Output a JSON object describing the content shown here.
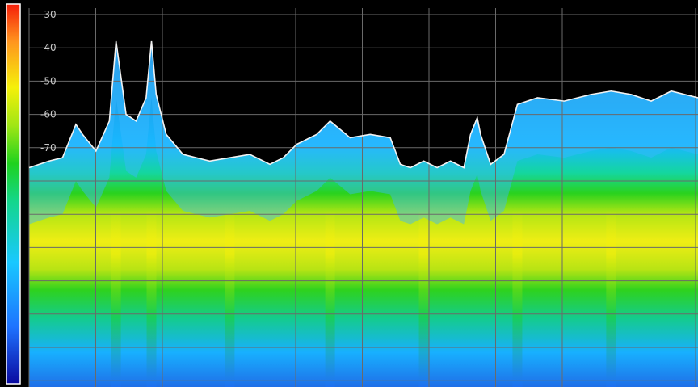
{
  "chart_data": {
    "type": "spectrum-density",
    "ylim": [
      -80,
      -30
    ],
    "y_ticks": [
      "-30",
      "-40",
      "-50",
      "-60",
      "-70"
    ],
    "grid": true,
    "color_scale": [
      "#0a0aa0",
      "#1e73ff",
      "#18c8ff",
      "#13d68c",
      "#1ed21e",
      "#a0e614",
      "#f5f00a",
      "#ff961e",
      "#f51e0a"
    ],
    "trace_max_hold": [
      {
        "x": 0.0,
        "y": -76
      },
      {
        "x": 0.03,
        "y": -74
      },
      {
        "x": 0.05,
        "y": -73
      },
      {
        "x": 0.07,
        "y": -63
      },
      {
        "x": 0.08,
        "y": -66
      },
      {
        "x": 0.1,
        "y": -71
      },
      {
        "x": 0.12,
        "y": -62
      },
      {
        "x": 0.13,
        "y": -38
      },
      {
        "x": 0.145,
        "y": -60
      },
      {
        "x": 0.16,
        "y": -62
      },
      {
        "x": 0.175,
        "y": -55
      },
      {
        "x": 0.183,
        "y": -38
      },
      {
        "x": 0.19,
        "y": -54
      },
      {
        "x": 0.205,
        "y": -66
      },
      {
        "x": 0.23,
        "y": -72
      },
      {
        "x": 0.27,
        "y": -74
      },
      {
        "x": 0.3,
        "y": -73
      },
      {
        "x": 0.33,
        "y": -72
      },
      {
        "x": 0.36,
        "y": -75
      },
      {
        "x": 0.38,
        "y": -73
      },
      {
        "x": 0.4,
        "y": -69
      },
      {
        "x": 0.43,
        "y": -66
      },
      {
        "x": 0.45,
        "y": -62
      },
      {
        "x": 0.48,
        "y": -67
      },
      {
        "x": 0.51,
        "y": -66
      },
      {
        "x": 0.54,
        "y": -67
      },
      {
        "x": 0.555,
        "y": -75
      },
      {
        "x": 0.57,
        "y": -76
      },
      {
        "x": 0.59,
        "y": -74
      },
      {
        "x": 0.61,
        "y": -76
      },
      {
        "x": 0.63,
        "y": -74
      },
      {
        "x": 0.65,
        "y": -76
      },
      {
        "x": 0.66,
        "y": -66
      },
      {
        "x": 0.67,
        "y": -61
      },
      {
        "x": 0.675,
        "y": -66
      },
      {
        "x": 0.69,
        "y": -75
      },
      {
        "x": 0.71,
        "y": -72
      },
      {
        "x": 0.73,
        "y": -57
      },
      {
        "x": 0.76,
        "y": -55
      },
      {
        "x": 0.8,
        "y": -56
      },
      {
        "x": 0.84,
        "y": -54
      },
      {
        "x": 0.87,
        "y": -53
      },
      {
        "x": 0.9,
        "y": -54
      },
      {
        "x": 0.93,
        "y": -56
      },
      {
        "x": 0.96,
        "y": -53
      },
      {
        "x": 1.0,
        "y": -55
      }
    ],
    "signal_ridges": [
      0.13,
      0.183,
      0.3,
      0.45,
      0.59,
      0.73,
      0.87
    ]
  }
}
